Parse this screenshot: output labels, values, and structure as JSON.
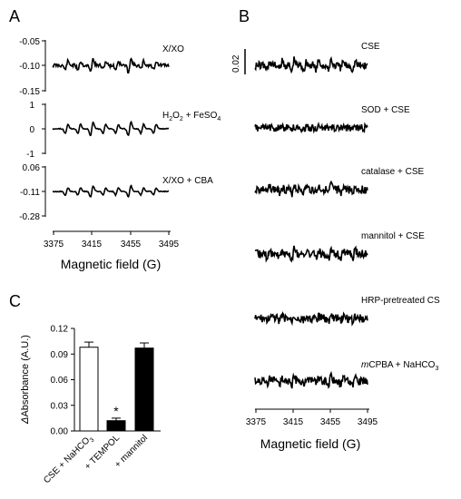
{
  "panels": {
    "a": "A",
    "b": "B",
    "c": "C"
  },
  "panel_a": {
    "traces": [
      {
        "label": "X/XO",
        "yticks": [
          "-0.05",
          "-0.10",
          "-0.15"
        ]
      },
      {
        "label_main": "H",
        "label_sub1": "2",
        "label_mid": "O",
        "label_sub2": "2",
        "label_end": " + FeSO",
        "label_sub3": "4",
        "yticks": [
          "1",
          "0",
          "-1"
        ]
      },
      {
        "label": "X/XO + CBA",
        "yticks": [
          "0.06",
          "-0.11",
          "-0.28"
        ]
      }
    ],
    "xticks": [
      "3375",
      "3415",
      "3455",
      "3495"
    ],
    "xlabel": "Magnetic field (G)"
  },
  "panel_b": {
    "scale_label": "0.02",
    "traces": [
      {
        "label": "CSE"
      },
      {
        "label": "SOD + CSE"
      },
      {
        "label": "catalase + CSE"
      },
      {
        "label": "mannitol + CSE"
      },
      {
        "label": "HRP-pretreated CS"
      },
      {
        "label_italic": "m",
        "label_rest": "CPBA + NaHCO",
        "label_sub": "3"
      }
    ],
    "xticks": [
      "3375",
      "3415",
      "3455",
      "3495"
    ],
    "xlabel": "Magnetic field (G)"
  },
  "chart_data": {
    "type": "bar",
    "categories": [
      "CSE + NaHCO3",
      "+ TEMPOL",
      "+ mannitol"
    ],
    "category_labels": {
      "c1_main": "CSE + NaHCO",
      "c1_sub": "3",
      "c2": "+ TEMPOL",
      "c3": "+ mannitol"
    },
    "values": [
      0.098,
      0.012,
      0.097
    ],
    "errors": [
      0.006,
      0.003,
      0.006
    ],
    "fills": [
      "#ffffff",
      "#000000",
      "#000000"
    ],
    "annotation": "*",
    "annotation_index": 1,
    "ylabel_delta": "Δ",
    "ylabel_rest": "Absorbance (A.U.)",
    "yticks": [
      "0.00",
      "0.03",
      "0.06",
      "0.09",
      "0.12"
    ],
    "ylim": [
      0,
      0.12
    ]
  }
}
